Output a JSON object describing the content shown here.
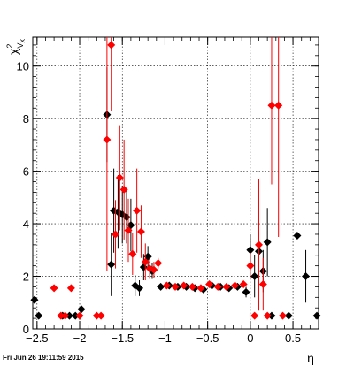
{
  "chart_data": {
    "type": "scatter",
    "title": "",
    "xlabel": "η",
    "ylabel_main": "χ",
    "ylabel_sup": "2",
    "ylabel_sub": "V",
    "ylabel_subsub": "X",
    "xlim": [
      -2.55,
      0.8
    ],
    "ylim": [
      0,
      11.1
    ],
    "x_ticks": [
      -2.5,
      -2,
      -1.5,
      -1,
      -0.5,
      0,
      0.5
    ],
    "x_tick_labels": [
      "−2.5",
      "−2",
      "−1.5",
      "−1",
      "−0.5",
      "0",
      "0.5"
    ],
    "y_ticks": [
      0,
      2,
      4,
      6,
      8,
      10
    ],
    "y_tick_labels": [
      "0",
      "2",
      "4",
      "6",
      "8",
      "10"
    ],
    "grid": true,
    "timestamp": "Fri Jun 26 19:11:59 2015",
    "series": [
      {
        "color": "#000000",
        "points": [
          [
            -2.53,
            1.1,
            0
          ],
          [
            -2.48,
            0.5,
            0
          ],
          [
            -2.2,
            0.5,
            0
          ],
          [
            -2.12,
            0.5,
            0
          ],
          [
            -2.05,
            0.5,
            0
          ],
          [
            -1.98,
            0.75,
            0
          ],
          [
            -1.68,
            8.15,
            1.8
          ],
          [
            -1.63,
            2.45,
            1.2
          ],
          [
            -1.6,
            4.5,
            1.6
          ],
          [
            -1.55,
            4.45,
            1.4
          ],
          [
            -1.5,
            4.35,
            1.1
          ],
          [
            -1.45,
            4.25,
            1.0
          ],
          [
            -1.4,
            3.95,
            1.0
          ],
          [
            -1.35,
            1.65,
            0.4
          ],
          [
            -1.3,
            1.55,
            0.3
          ],
          [
            -1.25,
            2.35,
            0.5
          ],
          [
            -1.2,
            2.75,
            0.4
          ],
          [
            -1.15,
            2.2,
            0.3
          ],
          [
            -1.05,
            1.6,
            0.1
          ],
          [
            -0.95,
            1.65,
            0.1
          ],
          [
            -0.85,
            1.6,
            0.1
          ],
          [
            -0.75,
            1.6,
            0.1
          ],
          [
            -0.65,
            1.55,
            0.1
          ],
          [
            -0.55,
            1.5,
            0.1
          ],
          [
            -0.45,
            1.65,
            0.1
          ],
          [
            -0.35,
            1.6,
            0.1
          ],
          [
            -0.25,
            1.55,
            0.1
          ],
          [
            -0.15,
            1.6,
            0.1
          ],
          [
            -0.05,
            1.4,
            0.2
          ],
          [
            0.0,
            3.0,
            0.6
          ],
          [
            0.05,
            2.0,
            0.8
          ],
          [
            0.1,
            2.95,
            0.8
          ],
          [
            0.15,
            2.2,
            0.8
          ],
          [
            0.2,
            3.3,
            1.3
          ],
          [
            0.25,
            0.5,
            0
          ],
          [
            0.45,
            0.5,
            0
          ],
          [
            0.55,
            3.55,
            0
          ],
          [
            0.65,
            2.0,
            1.0
          ],
          [
            0.78,
            0.5,
            0
          ]
        ]
      },
      {
        "color": "#ff0000",
        "points": [
          [
            -2.3,
            1.55,
            0
          ],
          [
            -2.22,
            0.5,
            0
          ],
          [
            -2.17,
            0.5,
            0
          ],
          [
            -2.1,
            1.55,
            0
          ],
          [
            -2.0,
            0.5,
            0
          ],
          [
            -1.8,
            0.5,
            0
          ],
          [
            -1.75,
            0.5,
            0
          ],
          [
            -1.68,
            7.2,
            5.0
          ],
          [
            -1.63,
            10.8,
            2.5
          ],
          [
            -1.58,
            3.6,
            1.3
          ],
          [
            -1.53,
            5.75,
            2.0
          ],
          [
            -1.48,
            5.3,
            1.9
          ],
          [
            -1.43,
            3.75,
            1.2
          ],
          [
            -1.38,
            2.85,
            0.8
          ],
          [
            -1.33,
            4.5,
            1.6
          ],
          [
            -1.28,
            3.7,
            1.0
          ],
          [
            -1.23,
            2.55,
            0.7
          ],
          [
            -1.18,
            2.3,
            0.4
          ],
          [
            -1.13,
            2.25,
            0.3
          ],
          [
            -1.08,
            2.5,
            0.2
          ],
          [
            -0.98,
            1.65,
            0.1
          ],
          [
            -0.88,
            1.6,
            0.1
          ],
          [
            -0.78,
            1.65,
            0.1
          ],
          [
            -0.68,
            1.6,
            0.1
          ],
          [
            -0.58,
            1.55,
            0.1
          ],
          [
            -0.48,
            1.7,
            0.1
          ],
          [
            -0.38,
            1.6,
            0.1
          ],
          [
            -0.28,
            1.6,
            0.1
          ],
          [
            -0.18,
            1.65,
            0.1
          ],
          [
            -0.08,
            1.7,
            0.1
          ],
          [
            0.0,
            2.4,
            0.5
          ],
          [
            0.05,
            0.5,
            0
          ],
          [
            0.1,
            3.2,
            2.5
          ],
          [
            0.15,
            1.7,
            1.0
          ],
          [
            0.2,
            0.5,
            0
          ],
          [
            0.25,
            8.5,
            3.0
          ],
          [
            0.33,
            8.5,
            5.0
          ],
          [
            0.38,
            0.5,
            0
          ]
        ]
      }
    ]
  }
}
